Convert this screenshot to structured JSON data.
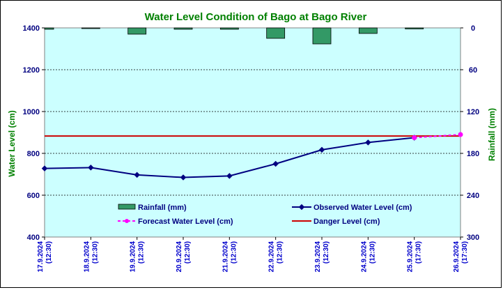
{
  "chart_data": {
    "type": "bar+line",
    "title": "Water Level Condition of Bago at Bago River",
    "ylabel_left": "Water Level (cm)",
    "ylabel_right": "Rainfall (mm)",
    "y_left_lim": [
      400,
      1400
    ],
    "y_left_ticks": [
      400,
      600,
      800,
      1000,
      1200,
      1400
    ],
    "y_right_lim": [
      0,
      300
    ],
    "y_right_ticks": [
      0,
      60,
      120,
      180,
      240,
      300
    ],
    "y_right_inverted": true,
    "grid": "horizontal-dotted",
    "categories": [
      {
        "date": "17.9.2024",
        "time": "(12:30)"
      },
      {
        "date": "18.9.2024",
        "time": "(12:30)"
      },
      {
        "date": "19.9.2024",
        "time": "(12:30)"
      },
      {
        "date": "20.9.2024",
        "time": "(12:30)"
      },
      {
        "date": "21.9.2024",
        "time": "(12:30)"
      },
      {
        "date": "22.9.2024",
        "time": "(12:30)"
      },
      {
        "date": "23.9.2024",
        "time": "(12:30)"
      },
      {
        "date": "24.9.2024",
        "time": "(12:30)"
      },
      {
        "date": "25.9.2024",
        "time": "(17:30)"
      },
      {
        "date": "26.9.2024",
        "time": "(17:30)"
      }
    ],
    "series": [
      {
        "name": "Rainfall (mm)",
        "type": "bar",
        "axis": "right",
        "color": "#339966",
        "values": [
          2,
          1,
          9,
          2,
          2,
          15,
          23,
          8,
          1.5,
          null
        ]
      },
      {
        "name": "Observed Water Level (cm)",
        "type": "line",
        "axis": "left",
        "color": "#000080",
        "values": [
          728,
          732,
          697,
          685,
          692,
          750,
          817,
          852,
          875,
          null
        ]
      },
      {
        "name": "Forecast Water Level (cm)",
        "type": "dashed-line",
        "axis": "left",
        "color": "#ff00ff",
        "values": [
          null,
          null,
          null,
          null,
          null,
          null,
          null,
          null,
          875,
          890
        ]
      },
      {
        "name": "Danger Level (cm)",
        "type": "hline",
        "axis": "left",
        "color": "#cc0000",
        "value": 883
      }
    ],
    "legend_placement": "bottom-center"
  }
}
